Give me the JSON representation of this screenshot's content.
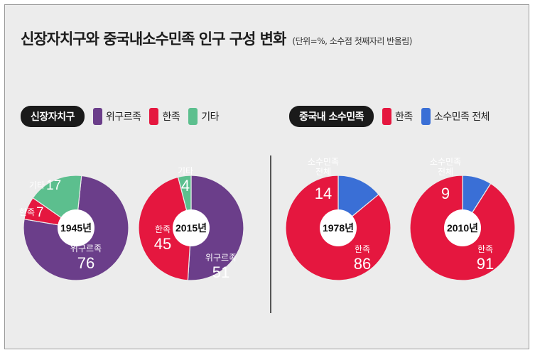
{
  "title": "신장자치구와 중국내소수민족 인구 구성 변화",
  "unit_note": "(단위=%, 소수점 첫째자리 반올림)",
  "legends": [
    {
      "title": "신장자치구",
      "items": [
        {
          "label": "위구르족",
          "color": "#6b3e8a"
        },
        {
          "label": "한족",
          "color": "#e5173f"
        },
        {
          "label": "기타",
          "color": "#5cbf8e"
        }
      ]
    },
    {
      "title": "중국내 소수민족",
      "items": [
        {
          "label": "한족",
          "color": "#e5173f"
        },
        {
          "label": "소수민족 전체",
          "color": "#3a6fd6"
        }
      ]
    }
  ],
  "chart_data": [
    {
      "type": "pie",
      "center_label": "1945년",
      "slices": [
        {
          "label": "위구르족",
          "value": 76,
          "color": "#6b3e8a"
        },
        {
          "label": "한족",
          "value": 7,
          "color": "#e5173f"
        },
        {
          "label": "기타",
          "value": 17,
          "color": "#5cbf8e"
        }
      ]
    },
    {
      "type": "pie",
      "center_label": "2015년",
      "slices": [
        {
          "label": "위구르족",
          "value": 51,
          "color": "#6b3e8a"
        },
        {
          "label": "한족",
          "value": 45,
          "color": "#e5173f"
        },
        {
          "label": "기타",
          "value": 4,
          "color": "#5cbf8e"
        }
      ]
    },
    {
      "type": "pie",
      "center_label": "1978년",
      "slices": [
        {
          "label": "한족",
          "value": 86,
          "color": "#e5173f"
        },
        {
          "label": "소수민족 전체",
          "value": 14,
          "color": "#3a6fd6"
        }
      ]
    },
    {
      "type": "pie",
      "center_label": "2010년",
      "slices": [
        {
          "label": "한족",
          "value": 91,
          "color": "#e5173f"
        },
        {
          "label": "소수민족 전체",
          "value": 9,
          "color": "#3a6fd6"
        }
      ]
    }
  ]
}
